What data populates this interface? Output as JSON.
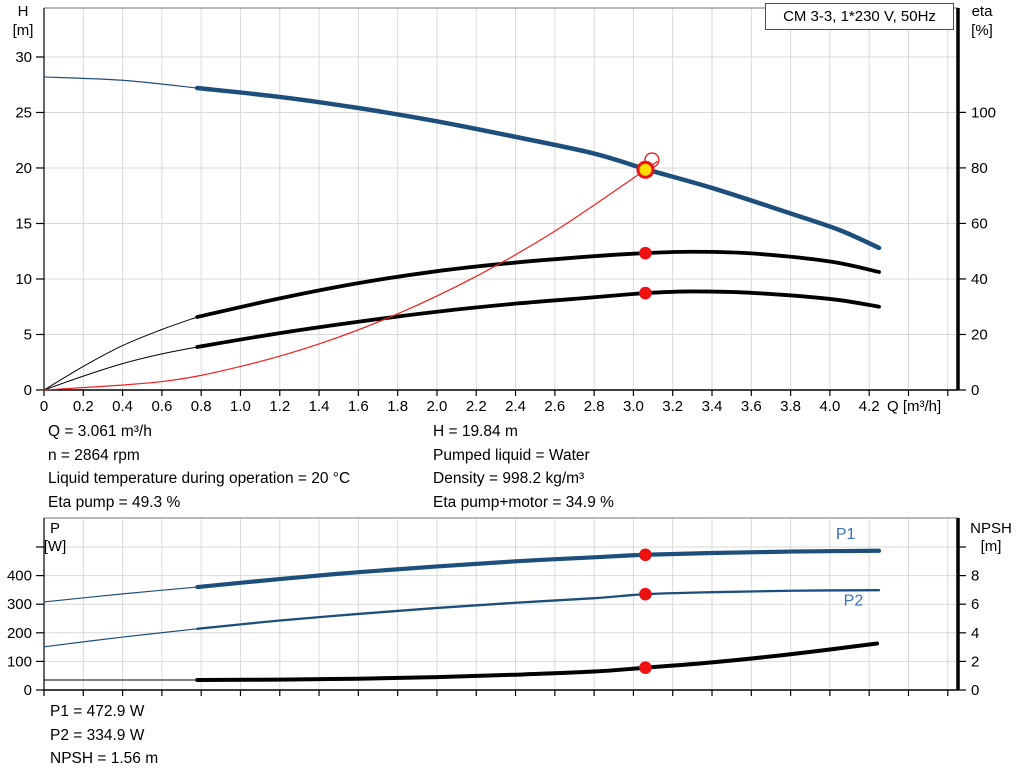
{
  "header": {
    "title_box": "CM 3-3, 1*230 V, 50Hz"
  },
  "colors": {
    "curve_blue": "#1d4f7c",
    "curve_black": "#000000",
    "curve_red": "#ef2020",
    "red_dot": "#ee1111",
    "duty_yellow": "#ffdf00",
    "label_blue": "#3a70be",
    "grid": "#d9d9d9",
    "frame": "#a0a0a0",
    "text": "#000000"
  },
  "info": {
    "top_left": [
      "Q = 3.061 m³/h",
      "n = 2864 rpm",
      "Liquid temperature during operation = 20 °C",
      "Eta pump = 49.3 %"
    ],
    "top_right": [
      "H = 19.84 m",
      "Pumped liquid = Water",
      "Density = 998.2 kg/m³",
      "Eta pump+motor = 34.9 %"
    ],
    "bottom": [
      "P1 = 472.9 W",
      "P2 = 334.9 W",
      "NPSH = 1.56 m"
    ]
  },
  "chart_data": [
    {
      "type": "line",
      "name": "qh-eta-chart",
      "x_range": [
        0,
        4.652
      ],
      "x_tick_step": 0.2,
      "x_tick_labels": [
        "0",
        "0.2",
        "0.4",
        "0.6",
        "0.8",
        "1.0",
        "1.2",
        "1.4",
        "1.6",
        "1.8",
        "2.0",
        "2.2",
        "2.4",
        "2.6",
        "2.8",
        "3.0",
        "3.2",
        "3.4",
        "3.6",
        "3.8",
        "4.0",
        "4.2"
      ],
      "x_unit_label": "Q [m³/h]",
      "y_left": {
        "label_lines": [
          "H",
          "[m]"
        ],
        "range": [
          0,
          34.41
        ],
        "ticks": [
          [
            0,
            "0"
          ],
          [
            5,
            "5"
          ],
          [
            10,
            "10"
          ],
          [
            15,
            "15"
          ],
          [
            20,
            "20"
          ],
          [
            25,
            "25"
          ],
          [
            30,
            "30"
          ]
        ]
      },
      "y_right": {
        "label_lines": [
          "eta",
          "[%]"
        ],
        "range": [
          0,
          137.6
        ],
        "ticks": [
          [
            0,
            "0"
          ],
          [
            20,
            "20"
          ],
          [
            40,
            "40"
          ],
          [
            60,
            "60"
          ],
          [
            80,
            "80"
          ],
          [
            100,
            "100"
          ]
        ]
      },
      "series": [
        {
          "name": "h-curve-ext",
          "axis": "left",
          "color": "curve_blue",
          "width": 1.2,
          "points": [
            [
              0,
              28.2
            ],
            [
              0.4,
              27.9
            ],
            [
              0.78,
              27.2
            ]
          ]
        },
        {
          "name": "h-curve",
          "axis": "left",
          "color": "curve_blue",
          "width": 4.5,
          "points": [
            [
              0.78,
              27.2
            ],
            [
              1.2,
              26.4
            ],
            [
              1.6,
              25.4
            ],
            [
              2.0,
              24.2
            ],
            [
              2.4,
              22.8
            ],
            [
              2.8,
              21.3
            ],
            [
              3.061,
              19.9
            ],
            [
              3.4,
              18.2
            ],
            [
              3.8,
              15.9
            ],
            [
              4.05,
              14.4
            ],
            [
              4.25,
              12.8
            ]
          ]
        },
        {
          "name": "eta-pump-ext",
          "axis": "right",
          "color": "curve_black",
          "width": 1,
          "points": [
            [
              0,
              0
            ],
            [
              0.2,
              8.5
            ],
            [
              0.4,
              16
            ],
            [
              0.6,
              21.8
            ],
            [
              0.78,
              26.3
            ]
          ]
        },
        {
          "name": "eta-pump-curve",
          "axis": "right",
          "color": "curve_black",
          "width": 3.8,
          "points": [
            [
              0.78,
              26.3
            ],
            [
              1.2,
              33
            ],
            [
              1.6,
              38.5
            ],
            [
              2.0,
              42.8
            ],
            [
              2.4,
              45.9
            ],
            [
              2.8,
              48.2
            ],
            [
              3.061,
              49.3
            ],
            [
              3.3,
              49.8
            ],
            [
              3.6,
              49.2
            ],
            [
              4.0,
              46.3
            ],
            [
              4.25,
              42.5
            ]
          ]
        },
        {
          "name": "eta-pump-motor-ext",
          "axis": "right",
          "color": "curve_black",
          "width": 1,
          "points": [
            [
              0,
              0
            ],
            [
              0.2,
              5
            ],
            [
              0.4,
              9.5
            ],
            [
              0.6,
              13
            ],
            [
              0.78,
              15.5
            ]
          ]
        },
        {
          "name": "eta-pump-motor-curve",
          "axis": "right",
          "color": "curve_black",
          "width": 3.8,
          "points": [
            [
              0.78,
              15.5
            ],
            [
              1.2,
              20.5
            ],
            [
              1.6,
              24.6
            ],
            [
              2.0,
              28.2
            ],
            [
              2.4,
              31.1
            ],
            [
              2.8,
              33.4
            ],
            [
              3.061,
              34.9
            ],
            [
              3.3,
              35.5
            ],
            [
              3.6,
              35.0
            ],
            [
              4.0,
              32.8
            ],
            [
              4.25,
              30.0
            ]
          ]
        },
        {
          "name": "system-curve",
          "axis": "left",
          "color": "curve_red",
          "width": 1.2,
          "points": [
            [
              0,
              0
            ],
            [
              0.6,
              0.76
            ],
            [
              1.0,
              2.12
            ],
            [
              1.4,
              4.15
            ],
            [
              1.8,
              6.86
            ],
            [
              2.2,
              10.24
            ],
            [
              2.6,
              14.31
            ],
            [
              3.061,
              19.84
            ],
            [
              3.12,
              20.6
            ]
          ]
        }
      ],
      "markers": [
        {
          "name": "system-intersection-ring",
          "q": 3.094,
          "v": 20.72,
          "axis": "left",
          "style": "ring"
        },
        {
          "name": "eta-pump-point",
          "q": 3.061,
          "v": 49.3,
          "axis": "right",
          "style": "dot"
        },
        {
          "name": "eta-pump-motor-point",
          "q": 3.061,
          "v": 34.9,
          "axis": "right",
          "style": "dot"
        },
        {
          "name": "duty-point",
          "q": 3.061,
          "v": 19.84,
          "axis": "left",
          "style": "duty"
        }
      ],
      "curve_labels": []
    },
    {
      "type": "line",
      "name": "power-npsh-chart",
      "x_range": [
        0,
        4.652
      ],
      "x_tick_step": 0.2,
      "x_tick_labels": [],
      "x_unit_label": "",
      "y_left": {
        "label_lines": [
          "P",
          "[W]"
        ],
        "range": [
          0,
          601.4
        ],
        "ticks": [
          [
            0,
            "0"
          ],
          [
            100,
            "100"
          ],
          [
            200,
            "200"
          ],
          [
            300,
            "300"
          ],
          [
            400,
            "400"
          ],
          [
            500,
            ""
          ]
        ]
      },
      "y_right": {
        "label_lines": [
          "NPSH",
          "[m]"
        ],
        "range": [
          0,
          12.03
        ],
        "ticks": [
          [
            0,
            "0"
          ],
          [
            2,
            "2"
          ],
          [
            4,
            "4"
          ],
          [
            6,
            "6"
          ],
          [
            8,
            "8"
          ],
          [
            10,
            ""
          ]
        ]
      },
      "series": [
        {
          "name": "p1-curve-ext",
          "axis": "left",
          "color": "curve_blue",
          "width": 1.2,
          "points": [
            [
              0,
              308
            ],
            [
              0.4,
              336
            ],
            [
              0.78,
              360
            ]
          ]
        },
        {
          "name": "p1-curve",
          "axis": "left",
          "color": "curve_blue",
          "width": 4.2,
          "points": [
            [
              0.78,
              360
            ],
            [
              1.2,
              388
            ],
            [
              1.6,
              412
            ],
            [
              2.0,
              432
            ],
            [
              2.4,
              450
            ],
            [
              2.8,
              464
            ],
            [
              3.061,
              472.9
            ],
            [
              3.4,
              479
            ],
            [
              3.8,
              484
            ],
            [
              4.25,
              487
            ]
          ]
        },
        {
          "name": "p2-curve-ext",
          "axis": "left",
          "color": "curve_blue",
          "width": 1.2,
          "points": [
            [
              0,
              151
            ],
            [
              0.4,
              185
            ],
            [
              0.78,
              214
            ]
          ]
        },
        {
          "name": "p2-curve",
          "axis": "left",
          "color": "curve_blue",
          "width": 2.3,
          "points": [
            [
              0.78,
              214
            ],
            [
              1.2,
              243
            ],
            [
              1.6,
              266
            ],
            [
              2.0,
              287
            ],
            [
              2.4,
              305
            ],
            [
              2.8,
              321
            ],
            [
              3.061,
              334.9
            ],
            [
              3.4,
              342
            ],
            [
              3.8,
              347
            ],
            [
              4.25,
              349
            ]
          ]
        },
        {
          "name": "npsh-curve-ext",
          "axis": "right",
          "color": "curve_black",
          "width": 1,
          "points": [
            [
              0,
              0.7
            ],
            [
              0.78,
              0.7
            ]
          ]
        },
        {
          "name": "npsh-curve",
          "axis": "right",
          "color": "curve_black",
          "width": 4,
          "points": [
            [
              0.78,
              0.7
            ],
            [
              1.2,
              0.73
            ],
            [
              1.6,
              0.79
            ],
            [
              2.0,
              0.9
            ],
            [
              2.4,
              1.07
            ],
            [
              2.8,
              1.29
            ],
            [
              3.061,
              1.56
            ],
            [
              3.4,
              1.93
            ],
            [
              3.8,
              2.5
            ],
            [
              4.24,
              3.25
            ]
          ]
        }
      ],
      "markers": [
        {
          "name": "p1-point",
          "q": 3.061,
          "v": 472.9,
          "axis": "left",
          "style": "dot"
        },
        {
          "name": "p2-point",
          "q": 3.061,
          "v": 334.9,
          "axis": "left",
          "style": "dot"
        },
        {
          "name": "npsh-point",
          "q": 3.061,
          "v": 1.56,
          "axis": "right",
          "style": "dot"
        }
      ],
      "curve_labels": [
        {
          "text": "P1",
          "q": 4.08,
          "v": 528,
          "axis": "left"
        },
        {
          "text": "P2",
          "q": 4.12,
          "v": 295,
          "axis": "left"
        }
      ]
    }
  ]
}
